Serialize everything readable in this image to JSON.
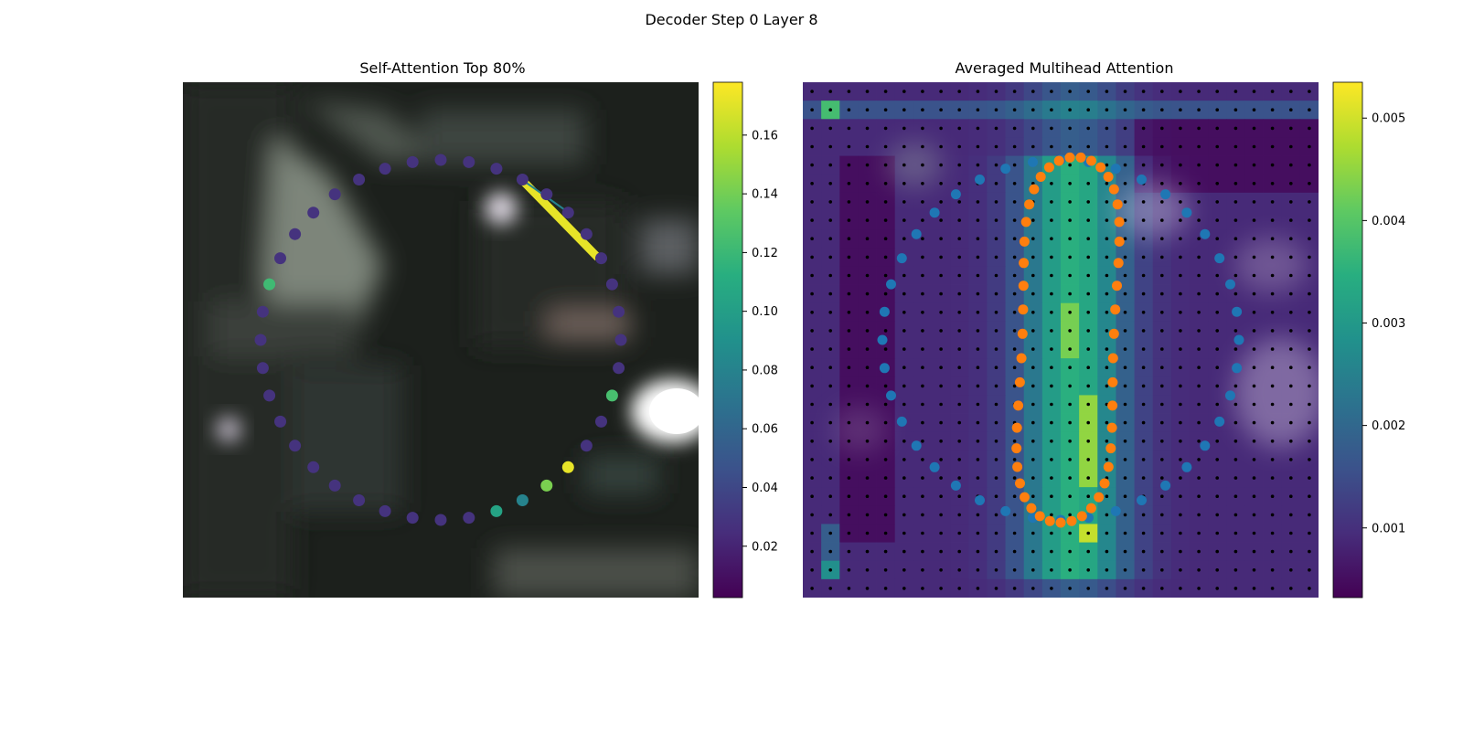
{
  "figure": {
    "suptitle": "Decoder Step 0 Layer 8"
  },
  "chart_data": [
    {
      "type": "scatter",
      "title": "Self-Attention Top 80%",
      "description_series": "40 contour points on a circle over a blurred image background, colored by attention weight",
      "colormap": "viridis",
      "colorbar": {
        "min": 0.0025,
        "max": 0.178,
        "ticks": [
          0.02,
          0.04,
          0.06,
          0.08,
          0.1,
          0.12,
          0.14,
          0.16
        ]
      },
      "highlight_points": [
        {
          "index": 36,
          "weight": 0.142
        },
        {
          "index": 35,
          "weight": 0.172
        },
        {
          "index": 37,
          "weight": 0.08
        },
        {
          "index": 38,
          "weight": 0.104
        },
        {
          "index": 32,
          "weight": 0.125
        },
        {
          "index": 12,
          "weight": 0.122
        }
      ],
      "default_weight": 0.028,
      "points_count": 40
    },
    {
      "type": "heatmap",
      "title": "Averaged Multihead Attention",
      "colormap": "viridis",
      "grid_size": 28,
      "colorbar": {
        "min": 0.00032,
        "max": 0.00535,
        "ticks": [
          0.001,
          0.002,
          0.003,
          0.004,
          0.005
        ]
      },
      "series": [
        {
          "name": "",
          "color": "#1f77b4",
          "points_count": 40
        },
        {
          "name": "",
          "color": "#ff7f0e",
          "points_count": 47
        }
      ]
    }
  ],
  "colors": {
    "blue_points": "#1f77b4",
    "orange_points": "#ff7f0e",
    "grid_dots": "#000000"
  }
}
